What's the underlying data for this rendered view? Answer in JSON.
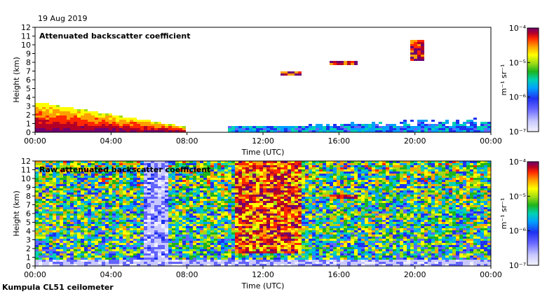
{
  "header": {
    "date": "19 Aug 2019"
  },
  "footer": {
    "instrument": "Kumpula CL51 ceilometer"
  },
  "chart_data": [
    {
      "type": "heatmap",
      "title": "Attenuated backscatter coefficient",
      "xlabel": "Time (UTC)",
      "ylabel": "Height (km)",
      "x_ticks": [
        "00:00",
        "04:00",
        "08:00",
        "12:00",
        "16:00",
        "20:00",
        "00:00"
      ],
      "y_ticks": [
        "0",
        "1",
        "2",
        "3",
        "4",
        "5",
        "6",
        "7",
        "8",
        "9",
        "10",
        "11",
        "12"
      ],
      "xlim_hours": [
        0,
        24
      ],
      "ylim_km": [
        0,
        12
      ],
      "colorbar": {
        "label": "m⁻¹ sr⁻¹",
        "ticks": [
          "10⁻⁴",
          "10⁻⁵",
          "10⁻⁶",
          "10⁻⁷"
        ],
        "log_range": [
          -7,
          -4
        ]
      },
      "features": [
        {
          "kind": "boundary_layer",
          "start_h": 0,
          "end_h": 8.0,
          "top_km_start": 3.5,
          "top_km_end": 0.6
        },
        {
          "kind": "cloud",
          "start_h": 13.0,
          "end_h": 14.0,
          "base_km": 6.5,
          "top_km": 7.0
        },
        {
          "kind": "cloud",
          "start_h": 15.5,
          "end_h": 17.0,
          "base_km": 7.8,
          "top_km": 8.2
        },
        {
          "kind": "cloud",
          "start_h": 19.8,
          "end_h": 20.5,
          "base_km": 8.2,
          "top_km": 10.5
        }
      ]
    },
    {
      "type": "heatmap",
      "title": "Raw attenuated backscatter coefficient",
      "xlabel": "Time (UTC)",
      "ylabel": "Height (km)",
      "x_ticks": [
        "00:00",
        "04:00",
        "08:00",
        "12:00",
        "16:00",
        "20:00",
        "00:00"
      ],
      "y_ticks": [
        "0",
        "1",
        "2",
        "3",
        "4",
        "5",
        "6",
        "7",
        "8",
        "9",
        "10",
        "11",
        "12"
      ],
      "xlim_hours": [
        0,
        24
      ],
      "ylim_km": [
        0,
        12
      ],
      "colorbar": {
        "label": "m⁻¹ sr⁻¹",
        "ticks": [
          "10⁻⁴",
          "10⁻⁵",
          "10⁻⁶",
          "10⁻⁷"
        ],
        "log_range": [
          -7,
          -4
        ]
      },
      "features": [
        {
          "kind": "noise_high",
          "start_h": 10.5,
          "end_h": 14.0
        },
        {
          "kind": "cloud",
          "start_h": 13.0,
          "end_h": 14.0,
          "base_km": 6.5,
          "top_km": 7.0
        },
        {
          "kind": "cloud",
          "start_h": 15.5,
          "end_h": 17.0,
          "base_km": 7.8,
          "top_km": 8.2
        }
      ]
    }
  ],
  "colors": {
    "scale": [
      "#f0f0ff",
      "#c8c8ff",
      "#6464ff",
      "#1e32f0",
      "#00a0ff",
      "#00d2b4",
      "#1eb41e",
      "#a0dc14",
      "#ffff00",
      "#ffa000",
      "#ff2800",
      "#b40028",
      "#700070"
    ]
  }
}
